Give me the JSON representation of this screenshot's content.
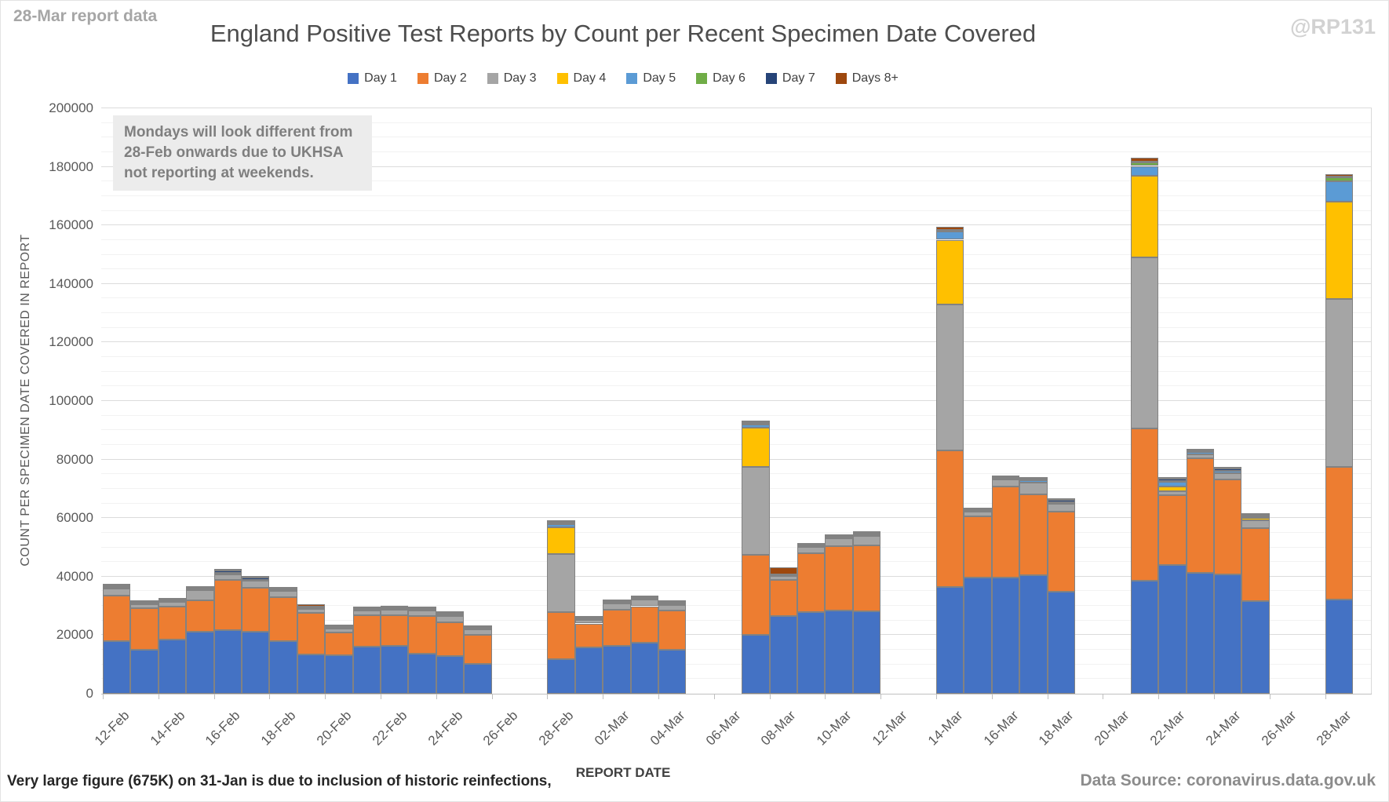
{
  "header": {
    "report_tag": "28-Mar report data",
    "watermark": "@RP131"
  },
  "title": "England Positive Test Reports by Count per Recent Specimen Date Covered",
  "annotation": {
    "lines": [
      "Mondays will look different from",
      "28-Feb onwards due to UKHSA",
      "not reporting at weekends."
    ]
  },
  "footer": {
    "note": "Very large figure (675K) on 31-Jan is due to inclusion of historic reinfections,",
    "source": "Data Source: coronavirus.data.gov.uk"
  },
  "chart_data": {
    "type": "bar",
    "stacked": true,
    "title": "England Positive Test Reports by Count per Recent Specimen Date Covered",
    "xlabel": "REPORT DATE",
    "ylabel": "COUNT PER SPECIMEN DATE COVERED IN REPORT",
    "ylim": [
      0,
      200000
    ],
    "ytick_step": 20000,
    "minor_grid_step": 5000,
    "grid": true,
    "legend_position": "top",
    "label_every": 2,
    "series_names": [
      "Day 1",
      "Day 2",
      "Day 3",
      "Day 4",
      "Day 5",
      "Day 6",
      "Day 7",
      "Days 8+"
    ],
    "series_colors": [
      "#4472C4",
      "#ED7D31",
      "#A5A5A5",
      "#FFC000",
      "#5B9BD5",
      "#70AD47",
      "#264478",
      "#9E480E"
    ],
    "categories": [
      "12-Feb",
      "13-Feb",
      "14-Feb",
      "15-Feb",
      "16-Feb",
      "17-Feb",
      "18-Feb",
      "19-Feb",
      "20-Feb",
      "21-Feb",
      "22-Feb",
      "23-Feb",
      "24-Feb",
      "25-Feb",
      "26-Feb",
      "27-Feb",
      "28-Feb",
      "01-Mar",
      "02-Mar",
      "03-Mar",
      "04-Mar",
      "05-Mar",
      "06-Mar",
      "07-Mar",
      "08-Mar",
      "09-Mar",
      "10-Mar",
      "11-Mar",
      "12-Mar",
      "13-Mar",
      "14-Mar",
      "15-Mar",
      "16-Mar",
      "17-Mar",
      "18-Mar",
      "19-Mar",
      "20-Mar",
      "21-Mar",
      "22-Mar",
      "23-Mar",
      "24-Mar",
      "25-Mar",
      "26-Mar",
      "27-Mar",
      "28-Mar"
    ],
    "values": [
      [
        18000,
        15600,
        2300,
        0,
        400,
        100,
        500,
        400
      ],
      [
        15100,
        14200,
        1400,
        0,
        300,
        0,
        400,
        200
      ],
      [
        18400,
        11300,
        1600,
        0,
        300,
        100,
        500,
        200
      ],
      [
        21200,
        10800,
        3300,
        0,
        400,
        100,
        500,
        200
      ],
      [
        21700,
        17200,
        1900,
        0,
        500,
        100,
        600,
        400
      ],
      [
        21200,
        15000,
        2300,
        0,
        400,
        100,
        600,
        300
      ],
      [
        17900,
        15100,
        2100,
        0,
        300,
        100,
        500,
        300
      ],
      [
        13500,
        14000,
        1500,
        0,
        300,
        100,
        400,
        900
      ],
      [
        13100,
        7700,
        1400,
        0,
        300,
        100,
        400,
        200
      ],
      [
        16000,
        10700,
        1600,
        0,
        300,
        100,
        400,
        200
      ],
      [
        16400,
        10400,
        1800,
        0,
        400,
        100,
        400,
        200
      ],
      [
        13600,
        13000,
        1800,
        0,
        300,
        100,
        400,
        200
      ],
      [
        12800,
        11700,
        2100,
        0,
        400,
        100,
        500,
        200
      ],
      [
        10100,
        10100,
        1700,
        0,
        400,
        100,
        500,
        300
      ],
      null,
      null,
      [
        11700,
        16100,
        19900,
        9200,
        1100,
        200,
        600,
        400
      ],
      [
        15800,
        8200,
        1300,
        0,
        200,
        100,
        300,
        200
      ],
      [
        16400,
        12400,
        2100,
        0,
        300,
        100,
        400,
        200
      ],
      [
        17300,
        12600,
        2300,
        0,
        300,
        100,
        400,
        200
      ],
      [
        15100,
        13200,
        2000,
        0,
        500,
        100,
        400,
        200
      ],
      null,
      null,
      [
        20100,
        27400,
        30100,
        13200,
        1100,
        200,
        700,
        400
      ],
      [
        26500,
        12300,
        1400,
        0,
        200,
        100,
        300,
        2300
      ],
      [
        28000,
        19900,
        2300,
        0,
        300,
        100,
        400,
        200
      ],
      [
        28500,
        21900,
        2700,
        0,
        300,
        100,
        400,
        200
      ],
      [
        28100,
        22600,
        3200,
        0,
        400,
        100,
        600,
        300
      ],
      null,
      null,
      [
        36500,
        46700,
        49800,
        22100,
        2700,
        300,
        400,
        900
      ],
      [
        39800,
        20900,
        1600,
        0,
        200,
        100,
        300,
        200
      ],
      [
        39600,
        31200,
        2400,
        0,
        300,
        100,
        400,
        200
      ],
      [
        40500,
        27700,
        4000,
        0,
        600,
        100,
        600,
        300
      ],
      [
        34900,
        27200,
        2700,
        0,
        600,
        100,
        600,
        300
      ],
      null,
      null,
      [
        38500,
        52100,
        58400,
        28000,
        3300,
        1100,
        300,
        1300
      ],
      [
        44100,
        23700,
        1400,
        1700,
        1500,
        200,
        900,
        300
      ],
      [
        41400,
        38900,
        1600,
        0,
        600,
        100,
        600,
        400
      ],
      [
        40700,
        32600,
        2100,
        0,
        700,
        100,
        800,
        300
      ],
      [
        31600,
        25000,
        2700,
        800,
        500,
        100,
        300,
        200
      ],
      null,
      null,
      [
        32100,
        45300,
        57500,
        33100,
        7100,
        1200,
        400,
        800
      ]
    ]
  }
}
